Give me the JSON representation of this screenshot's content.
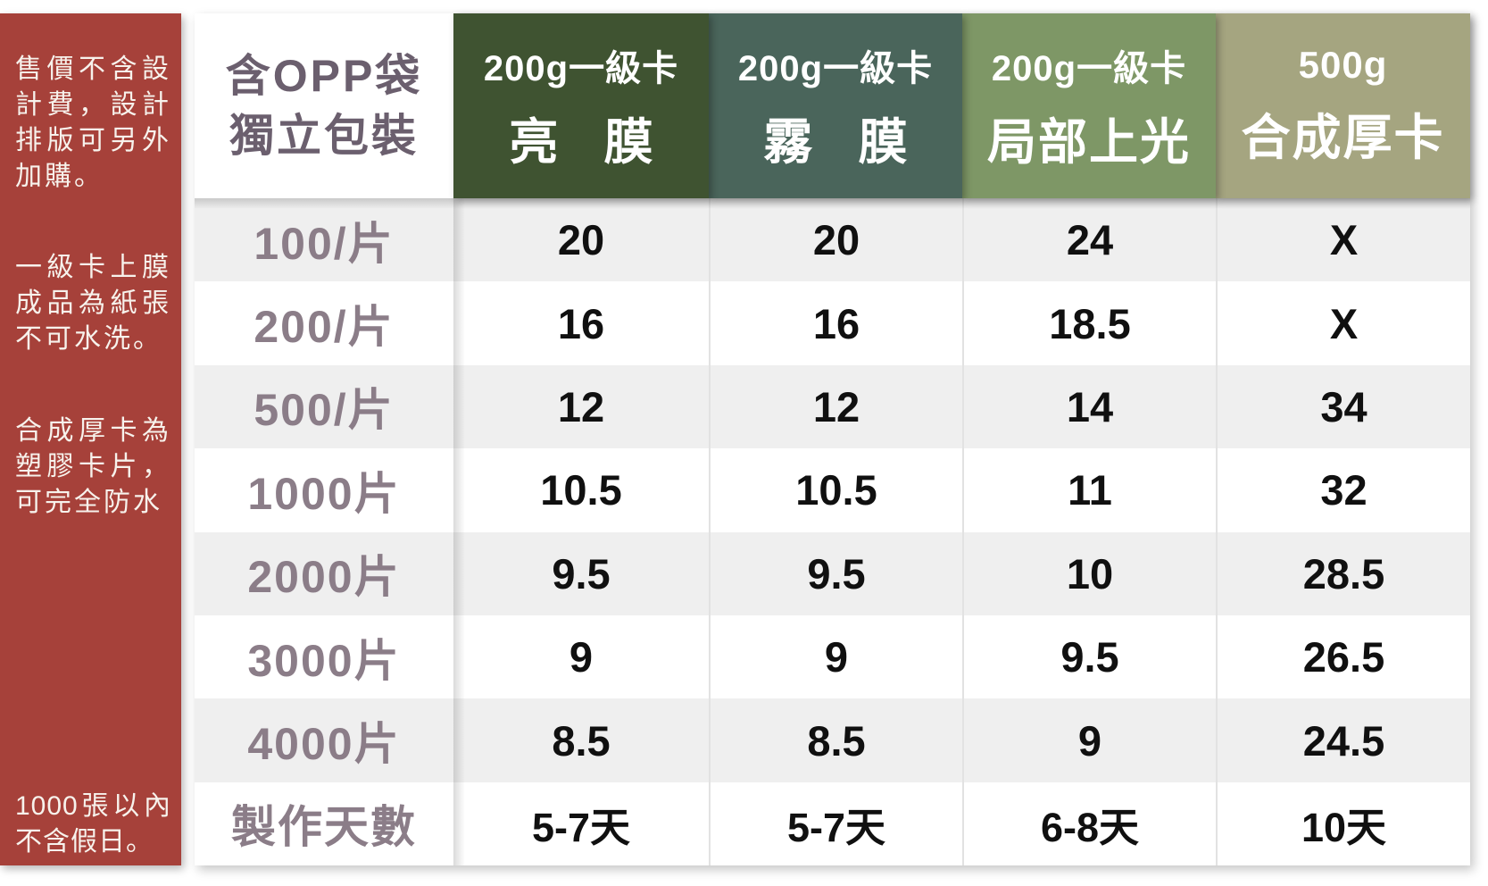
{
  "palette": {
    "sidebar-red": "#a6413a",
    "col1": "#3f5331",
    "col2": "#4a655b",
    "col3": "#7e9766",
    "col4": "#a5a580",
    "stripe": "#efefef",
    "grid-line": "#e2e2e2",
    "label-text": "#8b7d88",
    "corner-text": "#6b5f6e"
  },
  "sidebar": {
    "notes": [
      "售價不含設計費，設計排版可另外加購。",
      "一級卡上膜成品為紙張不可水洗。",
      "合成厚卡為塑膠卡片，可完全防水",
      "1000張以內不含假日。"
    ]
  },
  "table": {
    "corner": {
      "line1": "含OPP袋",
      "line2": "獨立包裝"
    },
    "columns": [
      {
        "line1": "200g一級卡",
        "line2": "亮 膜"
      },
      {
        "line1": "200g一級卡",
        "line2": "霧 膜"
      },
      {
        "line1": "200g一級卡",
        "line2": "局部上光"
      },
      {
        "line1": "500g",
        "line2": "合成厚卡"
      }
    ],
    "rows": [
      {
        "label": "100/片",
        "values": [
          "20",
          "20",
          "24",
          "X"
        ]
      },
      {
        "label": "200/片",
        "values": [
          "16",
          "16",
          "18.5",
          "X"
        ]
      },
      {
        "label": "500/片",
        "values": [
          "12",
          "12",
          "14",
          "34"
        ]
      },
      {
        "label": "1000片",
        "values": [
          "10.5",
          "10.5",
          "11",
          "32"
        ]
      },
      {
        "label": "2000片",
        "values": [
          "9.5",
          "9.5",
          "10",
          "28.5"
        ]
      },
      {
        "label": "3000片",
        "values": [
          "9",
          "9",
          "9.5",
          "26.5"
        ]
      },
      {
        "label": "4000片",
        "values": [
          "8.5",
          "8.5",
          "9",
          "24.5"
        ]
      },
      {
        "label": "製作天數",
        "values": [
          "5-7天",
          "5-7天",
          "6-8天",
          "10天"
        ]
      }
    ]
  },
  "chart_data": {
    "type": "table",
    "corner_header": "含OPP袋 獨立包裝",
    "column_headers": [
      "200g一級卡 亮膜",
      "200g一級卡 霧膜",
      "200g一級卡 局部上光",
      "500g 合成厚卡"
    ],
    "row_headers": [
      "100/片",
      "200/片",
      "500/片",
      "1000片",
      "2000片",
      "3000片",
      "4000片",
      "製作天數"
    ],
    "cells": [
      [
        "20",
        "20",
        "24",
        "X"
      ],
      [
        "16",
        "16",
        "18.5",
        "X"
      ],
      [
        "12",
        "12",
        "14",
        "34"
      ],
      [
        "10.5",
        "10.5",
        "11",
        "32"
      ],
      [
        "9.5",
        "9.5",
        "10",
        "28.5"
      ],
      [
        "9",
        "9",
        "9.5",
        "26.5"
      ],
      [
        "8.5",
        "8.5",
        "9",
        "24.5"
      ],
      [
        "5-7天",
        "5-7天",
        "6-8天",
        "10天"
      ]
    ],
    "side_notes": [
      "售價不含設計費，設計排版可另外加購。",
      "一級卡上膜成品為紙張不可水洗。",
      "合成厚卡為塑膠卡片，可完全防水",
      "1000張以內不含假日。"
    ]
  }
}
